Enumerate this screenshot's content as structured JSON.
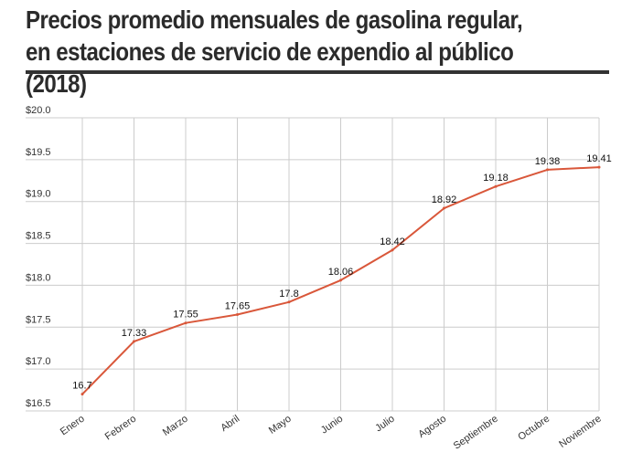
{
  "chart_data": {
    "type": "line",
    "title": "Precios promedio mensuales de gasolina regular, en estaciones de servicio de expendio al público (2018)",
    "categories": [
      "Enero",
      "Febrero",
      "Marzo",
      "Abril",
      "Mayo",
      "Junio",
      "Julio",
      "Agosto",
      "Septiembre",
      "Octubre",
      "Noviembre"
    ],
    "series": [
      {
        "values": [
          16.7,
          17.33,
          17.55,
          17.65,
          17.8,
          18.06,
          18.42,
          18.92,
          19.18,
          19.38,
          19.41
        ]
      }
    ],
    "ylim": [
      16.5,
      20.0
    ],
    "yticks": [
      16.5,
      17.0,
      17.5,
      18.0,
      18.5,
      19.0,
      19.5,
      20.0
    ],
    "ytick_labels": [
      "$16.5",
      "$17.0",
      "$17.5",
      "$18.0",
      "$18.5",
      "$19.0",
      "$19.5",
      "$20.0"
    ],
    "data_labels": [
      "16.7",
      "17.33",
      "17.55",
      "17.65",
      "17.8",
      "18.06",
      "18.42",
      "18.92",
      "19.18",
      "19.38",
      "19.41"
    ],
    "grid": true,
    "line_color": "#d9573a",
    "grid_color": "#cccccc"
  }
}
